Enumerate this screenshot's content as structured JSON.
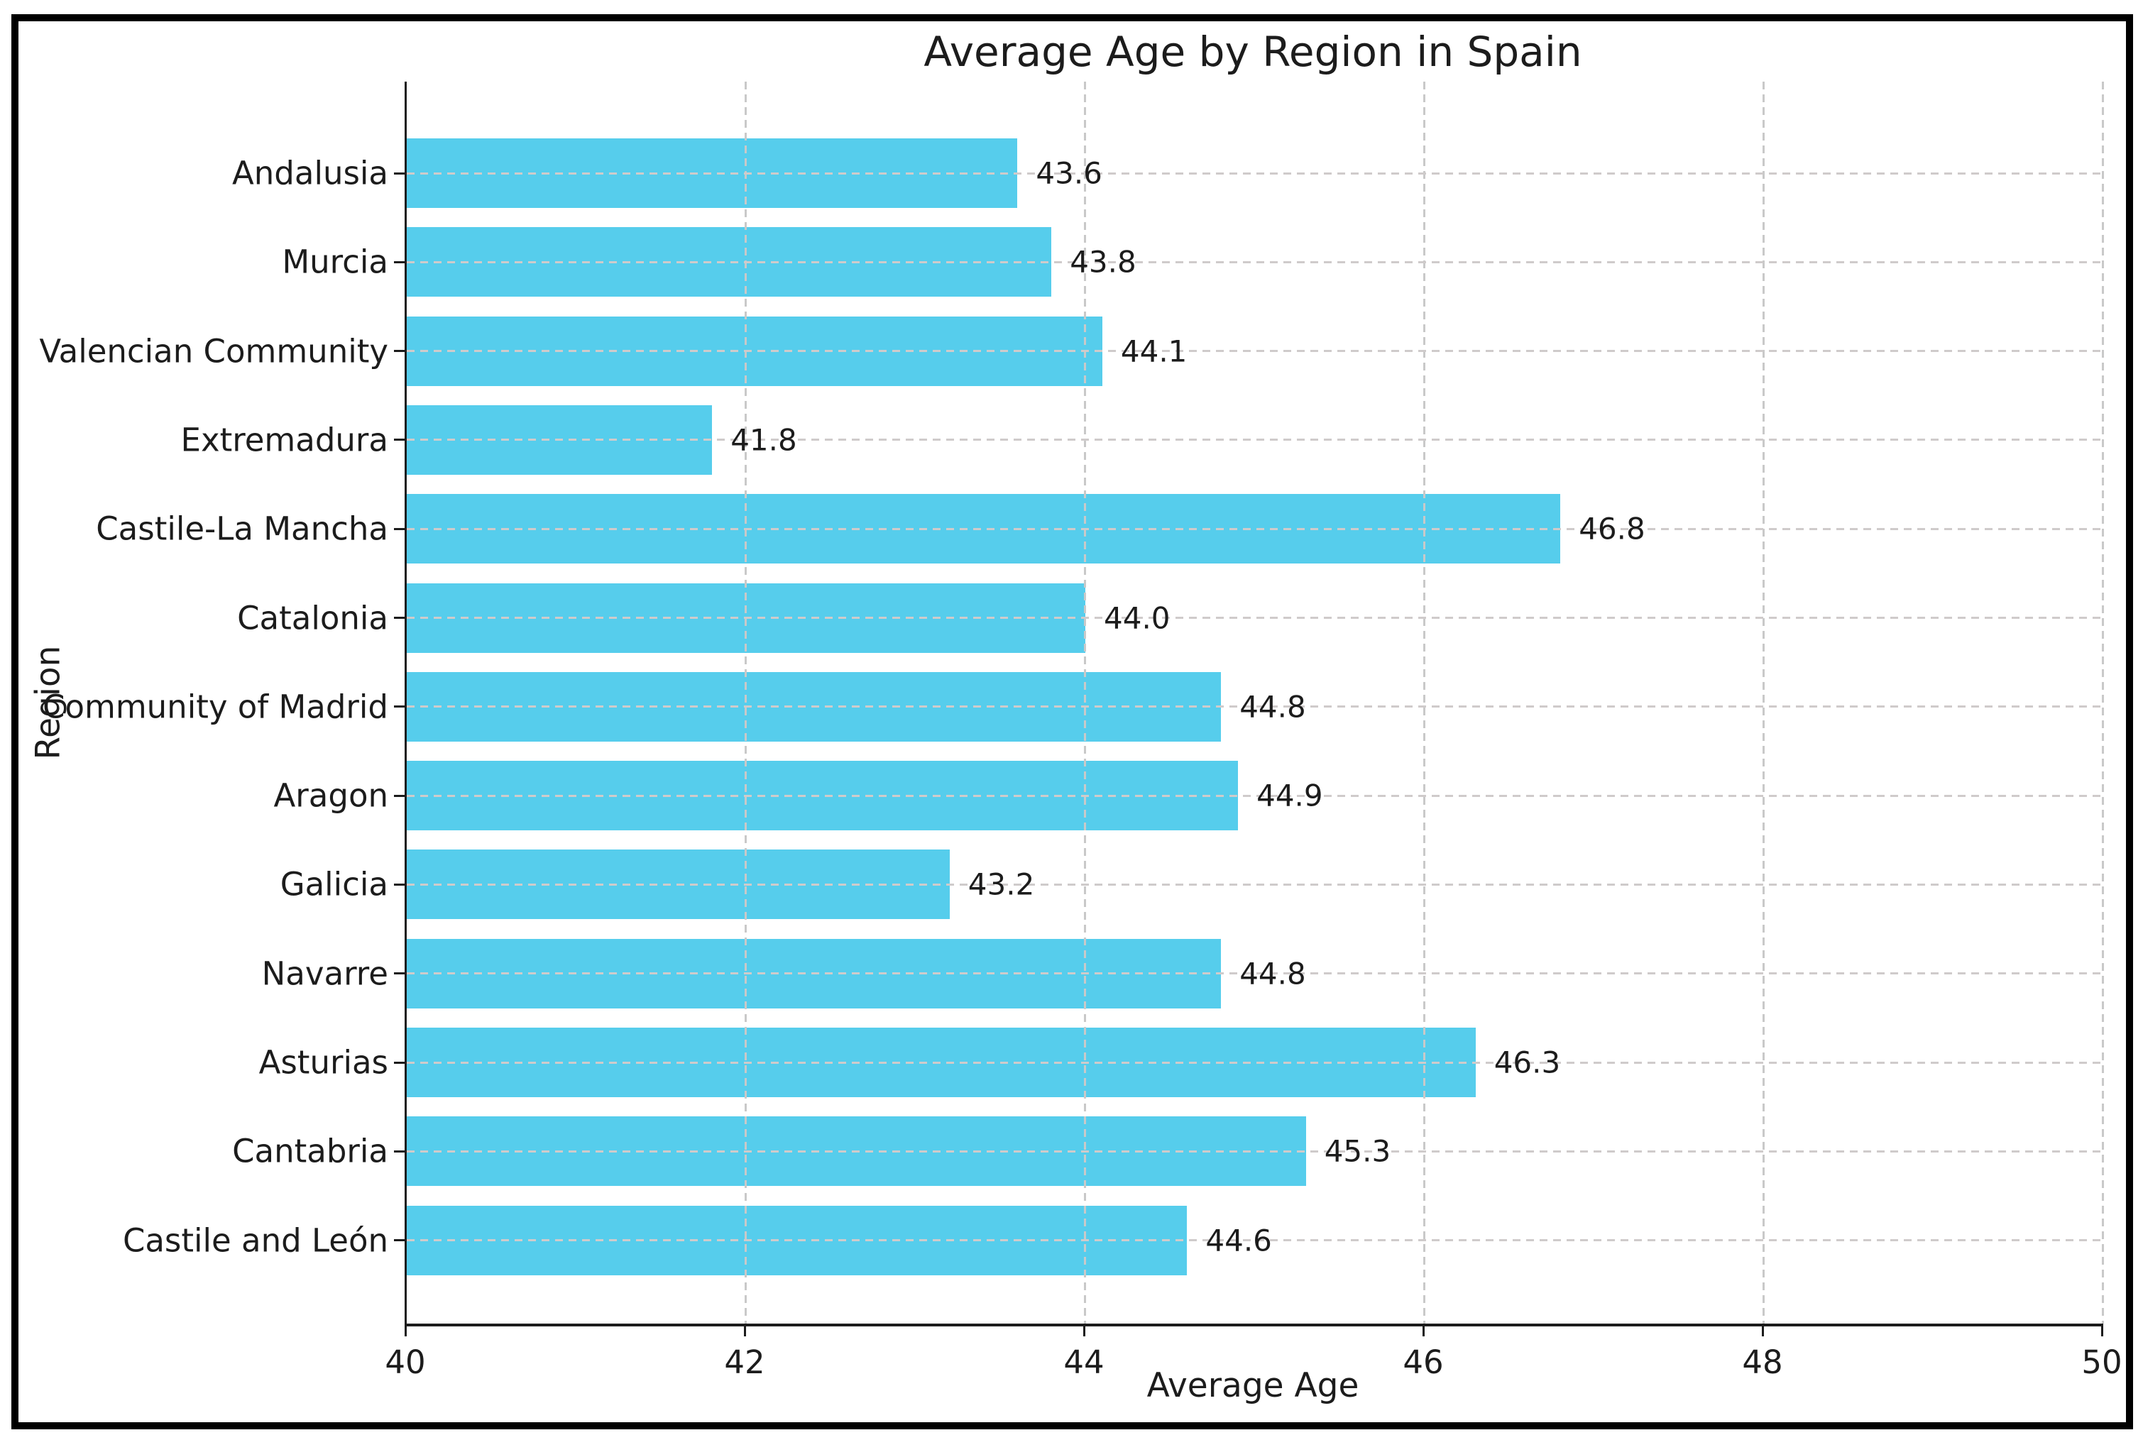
{
  "chart_data": {
    "type": "bar",
    "orientation": "horizontal",
    "title": "Average Age by Region in Spain",
    "xlabel": "Average Age",
    "ylabel": "Region",
    "categories": [
      "Andalusia",
      "Murcia",
      "Valencian Community",
      "Extremadura",
      "Castile-La Mancha",
      "Catalonia",
      "Community of Madrid",
      "Aragon",
      "Galicia",
      "Navarre",
      "Asturias",
      "Cantabria",
      "Castile and León"
    ],
    "values": [
      43.6,
      43.8,
      44.1,
      41.8,
      46.8,
      44.0,
      44.8,
      44.9,
      43.2,
      44.8,
      46.3,
      45.3,
      44.6
    ],
    "value_labels": [
      "43.6",
      "43.8",
      "44.1",
      "41.8",
      "46.8",
      "44.0",
      "44.8",
      "44.9",
      "43.2",
      "44.8",
      "46.3",
      "45.3",
      "44.6"
    ],
    "xlim": [
      40,
      50
    ],
    "xticks": [
      40,
      42,
      44,
      46,
      48,
      50
    ],
    "grid": "dashed",
    "legend": "none",
    "colors": {
      "bar_fill": "#56cdec",
      "grid_horizontal": "#cfcbcb",
      "grid_vertical": "#c9c9c9",
      "axis": "#1c1c1c",
      "text": "#1c1c1c",
      "figure_border": "#000000"
    }
  }
}
